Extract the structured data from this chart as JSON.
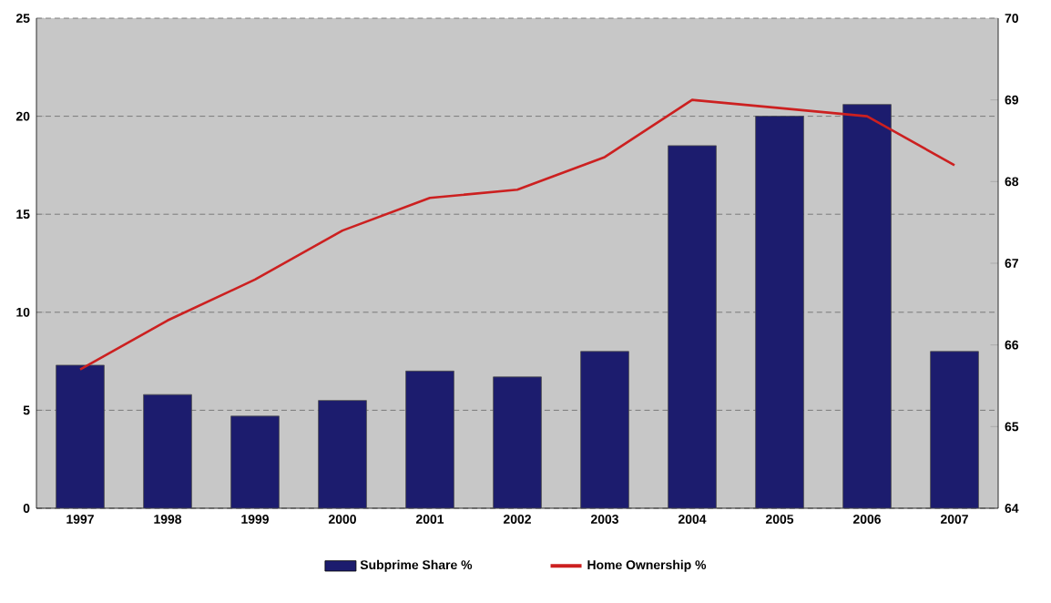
{
  "chart_data": {
    "type": "bar",
    "categories": [
      "1997",
      "1998",
      "1999",
      "2000",
      "2001",
      "2002",
      "2003",
      "2004",
      "2005",
      "2006",
      "2007"
    ],
    "series": [
      {
        "name": "Subprime Share %",
        "color": "#1c1c6e",
        "values": [
          7.3,
          5.8,
          4.7,
          5.5,
          7.0,
          6.7,
          8.0,
          18.5,
          20.0,
          20.6,
          8.0
        ]
      },
      {
        "name": "Home Ownership %",
        "type": "line",
        "axis": "y2",
        "color": "#cc2020",
        "values": [
          65.7,
          66.3,
          66.8,
          67.4,
          67.8,
          67.9,
          68.3,
          69.0,
          68.9,
          68.8,
          68.2
        ]
      }
    ],
    "ylim": [
      0,
      25
    ],
    "yticks": [
      0,
      5,
      10,
      15,
      20,
      25
    ],
    "y2lim": [
      64,
      70
    ],
    "y2ticks": [
      64,
      65,
      66,
      67,
      68,
      69,
      70
    ],
    "grid": "y",
    "legend": "bottom",
    "marker": "none",
    "line_style": "solid"
  }
}
